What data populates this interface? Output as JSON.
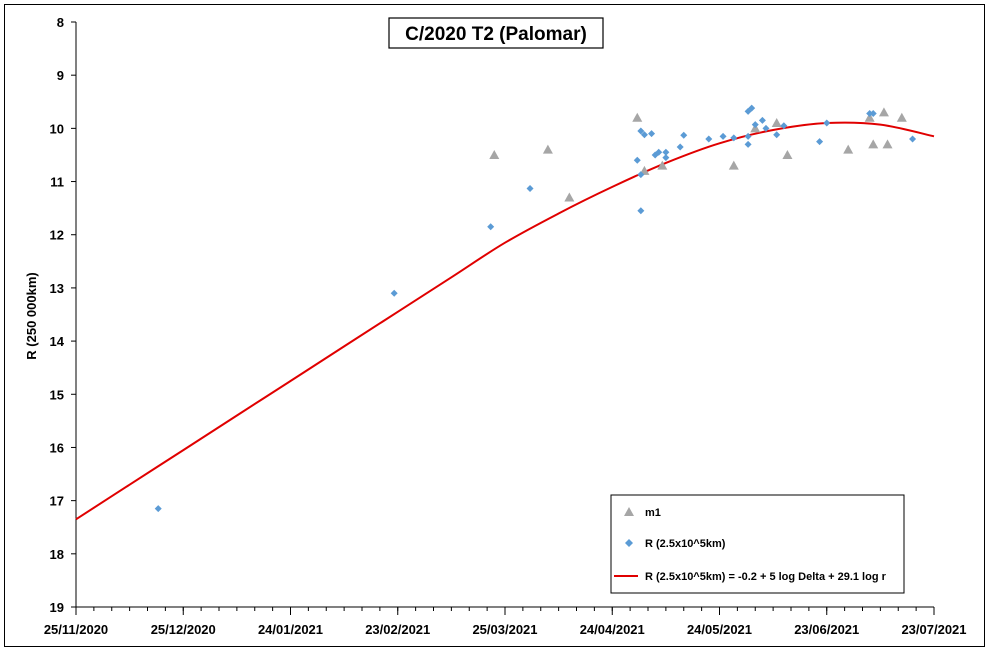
{
  "chart_data": {
    "type": "scatter",
    "title": "C/2020 T2 (Palomar)",
    "xlabel": "",
    "ylabel": "R (250 000km)",
    "y_inverted": true,
    "ylim": [
      8,
      19
    ],
    "y_ticks": [
      8,
      9,
      10,
      11,
      12,
      13,
      14,
      15,
      16,
      17,
      18,
      19
    ],
    "xlim": [
      "2020-11-25",
      "2021-07-23"
    ],
    "x_ticks": [
      "2020-11-25",
      "2020-12-25",
      "2021-01-24",
      "2021-02-23",
      "2021-03-25",
      "2021-04-24",
      "2021-05-24",
      "2021-06-23",
      "2021-07-23"
    ],
    "x_tick_labels": [
      "25/11/2020",
      "25/12/2020",
      "24/01/2021",
      "23/02/2021",
      "25/03/2021",
      "24/04/2021",
      "24/05/2021",
      "23/06/2021",
      "23/07/2021"
    ],
    "grid": false,
    "legend_position": "bottom-right",
    "series": [
      {
        "name": "m1",
        "kind": "scatter",
        "marker": "triangle",
        "color": "#a6a6a6",
        "points": [
          {
            "x": "2021-03-22",
            "y": 10.5
          },
          {
            "x": "2021-04-06",
            "y": 10.4
          },
          {
            "x": "2021-04-12",
            "y": 11.3
          },
          {
            "x": "2021-05-01",
            "y": 9.8
          },
          {
            "x": "2021-05-03",
            "y": 10.8
          },
          {
            "x": "2021-05-08",
            "y": 10.7
          },
          {
            "x": "2021-05-28",
            "y": 10.7
          },
          {
            "x": "2021-06-03",
            "y": 10.0
          },
          {
            "x": "2021-06-09",
            "y": 9.9
          },
          {
            "x": "2021-06-12",
            "y": 10.5
          },
          {
            "x": "2021-06-29",
            "y": 10.4
          },
          {
            "x": "2021-07-05",
            "y": 9.8
          },
          {
            "x": "2021-07-06",
            "y": 10.3
          },
          {
            "x": "2021-07-09",
            "y": 9.7
          },
          {
            "x": "2021-07-10",
            "y": 10.3
          },
          {
            "x": "2021-07-14",
            "y": 9.8
          }
        ]
      },
      {
        "name": "R (2.5x10^5km)",
        "kind": "scatter",
        "marker": "diamond",
        "color": "#5b9bd5",
        "points": [
          {
            "x": "2020-12-18",
            "y": 17.15
          },
          {
            "x": "2021-02-22",
            "y": 13.1
          },
          {
            "x": "2021-03-21",
            "y": 11.85
          },
          {
            "x": "2021-04-01",
            "y": 11.13
          },
          {
            "x": "2021-05-01",
            "y": 10.6
          },
          {
            "x": "2021-05-02",
            "y": 10.05
          },
          {
            "x": "2021-05-02",
            "y": 11.55
          },
          {
            "x": "2021-05-02",
            "y": 10.87
          },
          {
            "x": "2021-05-03",
            "y": 10.12
          },
          {
            "x": "2021-05-05",
            "y": 10.1
          },
          {
            "x": "2021-05-06",
            "y": 10.5
          },
          {
            "x": "2021-05-07",
            "y": 10.45
          },
          {
            "x": "2021-05-09",
            "y": 10.45
          },
          {
            "x": "2021-05-09",
            "y": 10.55
          },
          {
            "x": "2021-05-13",
            "y": 10.35
          },
          {
            "x": "2021-05-14",
            "y": 10.13
          },
          {
            "x": "2021-05-21",
            "y": 10.2
          },
          {
            "x": "2021-05-25",
            "y": 10.15
          },
          {
            "x": "2021-05-28",
            "y": 10.18
          },
          {
            "x": "2021-06-01",
            "y": 10.3
          },
          {
            "x": "2021-06-01",
            "y": 10.15
          },
          {
            "x": "2021-06-01",
            "y": 9.68
          },
          {
            "x": "2021-06-02",
            "y": 9.62
          },
          {
            "x": "2021-06-03",
            "y": 9.93
          },
          {
            "x": "2021-06-05",
            "y": 9.85
          },
          {
            "x": "2021-06-06",
            "y": 10.0
          },
          {
            "x": "2021-06-09",
            "y": 10.12
          },
          {
            "x": "2021-06-11",
            "y": 9.95
          },
          {
            "x": "2021-06-21",
            "y": 10.25
          },
          {
            "x": "2021-06-23",
            "y": 9.9
          },
          {
            "x": "2021-07-05",
            "y": 9.72
          },
          {
            "x": "2021-07-06",
            "y": 9.72
          },
          {
            "x": "2021-07-17",
            "y": 10.2
          }
        ]
      },
      {
        "name": "R (2.5x10^5km) = -0.2 + 5 log Delta + 29.1 log r",
        "kind": "line",
        "color": "#e00000",
        "points": [
          {
            "x": "2020-11-25",
            "y": 17.35
          },
          {
            "x": "2020-12-10",
            "y": 16.7
          },
          {
            "x": "2020-12-25",
            "y": 16.05
          },
          {
            "x": "2021-01-09",
            "y": 15.4
          },
          {
            "x": "2021-01-24",
            "y": 14.75
          },
          {
            "x": "2021-02-08",
            "y": 14.1
          },
          {
            "x": "2021-02-23",
            "y": 13.45
          },
          {
            "x": "2021-03-10",
            "y": 12.8
          },
          {
            "x": "2021-03-25",
            "y": 12.15
          },
          {
            "x": "2021-04-09",
            "y": 11.6
          },
          {
            "x": "2021-04-24",
            "y": 11.1
          },
          {
            "x": "2021-05-09",
            "y": 10.65
          },
          {
            "x": "2021-05-24",
            "y": 10.28
          },
          {
            "x": "2021-06-08",
            "y": 10.03
          },
          {
            "x": "2021-06-23",
            "y": 9.9
          },
          {
            "x": "2021-07-08",
            "y": 9.93
          },
          {
            "x": "2021-07-23",
            "y": 10.15
          }
        ]
      }
    ]
  }
}
